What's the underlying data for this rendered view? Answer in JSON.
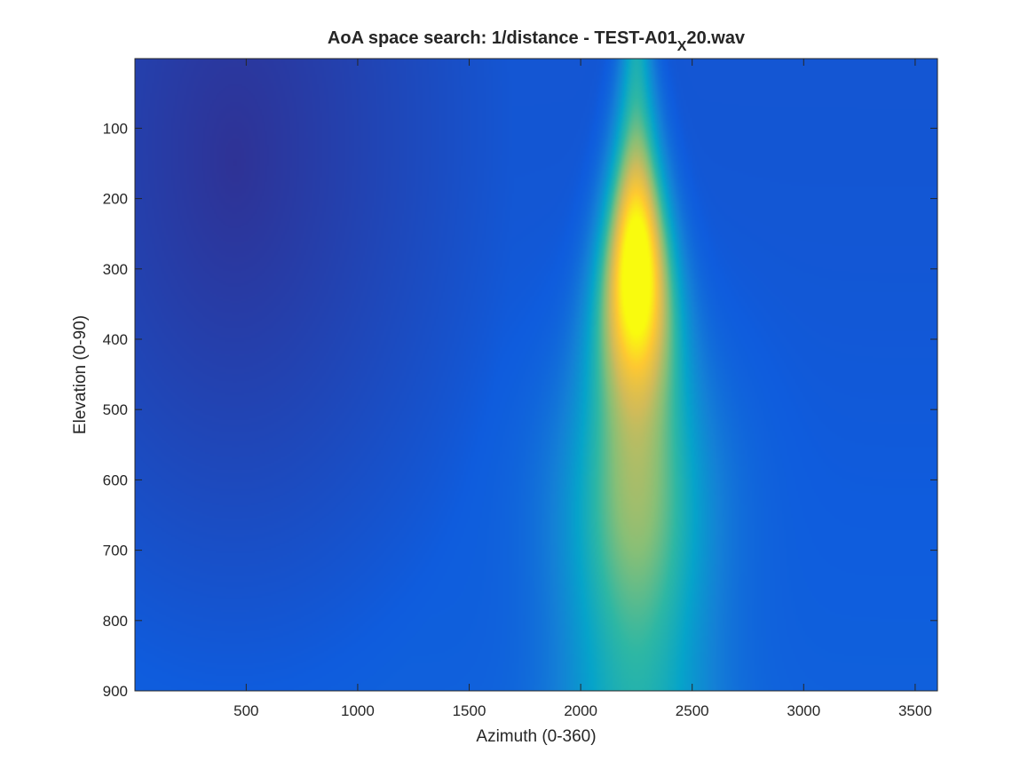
{
  "chart_data": {
    "type": "heatmap",
    "title": {
      "prefix": "AoA space search: 1/distance - TEST-A01",
      "subscript": "X",
      "suffix": "20.wav"
    },
    "xlabel": "Azimuth (0-360)",
    "ylabel": "Elevation (0-90)",
    "xlim": [
      1,
      3600
    ],
    "ylim": [
      1,
      900
    ],
    "y_direction": "reverse",
    "xticks": [
      500,
      1000,
      1500,
      2000,
      2500,
      3000,
      3500
    ],
    "xtick_labels": [
      "500",
      "1000",
      "1500",
      "2000",
      "2500",
      "3000",
      "3500"
    ],
    "yticks": [
      100,
      200,
      300,
      400,
      500,
      600,
      700,
      800,
      900
    ],
    "ytick_labels": [
      "100",
      "200",
      "300",
      "400",
      "500",
      "600",
      "700",
      "800",
      "900"
    ],
    "colormap": "parula",
    "colormap_stops": [
      "#352a87",
      "#0f5cdd",
      "#1481d6",
      "#06a4ca",
      "#2eb7a4",
      "#87bf77",
      "#d1bb59",
      "#fec832",
      "#f9fb0e"
    ],
    "colorbar": false,
    "grid": false,
    "peak": {
      "azimuth": 2250,
      "elevation": 300
    },
    "low_region": {
      "azimuth": 450,
      "elevation": 150
    }
  }
}
